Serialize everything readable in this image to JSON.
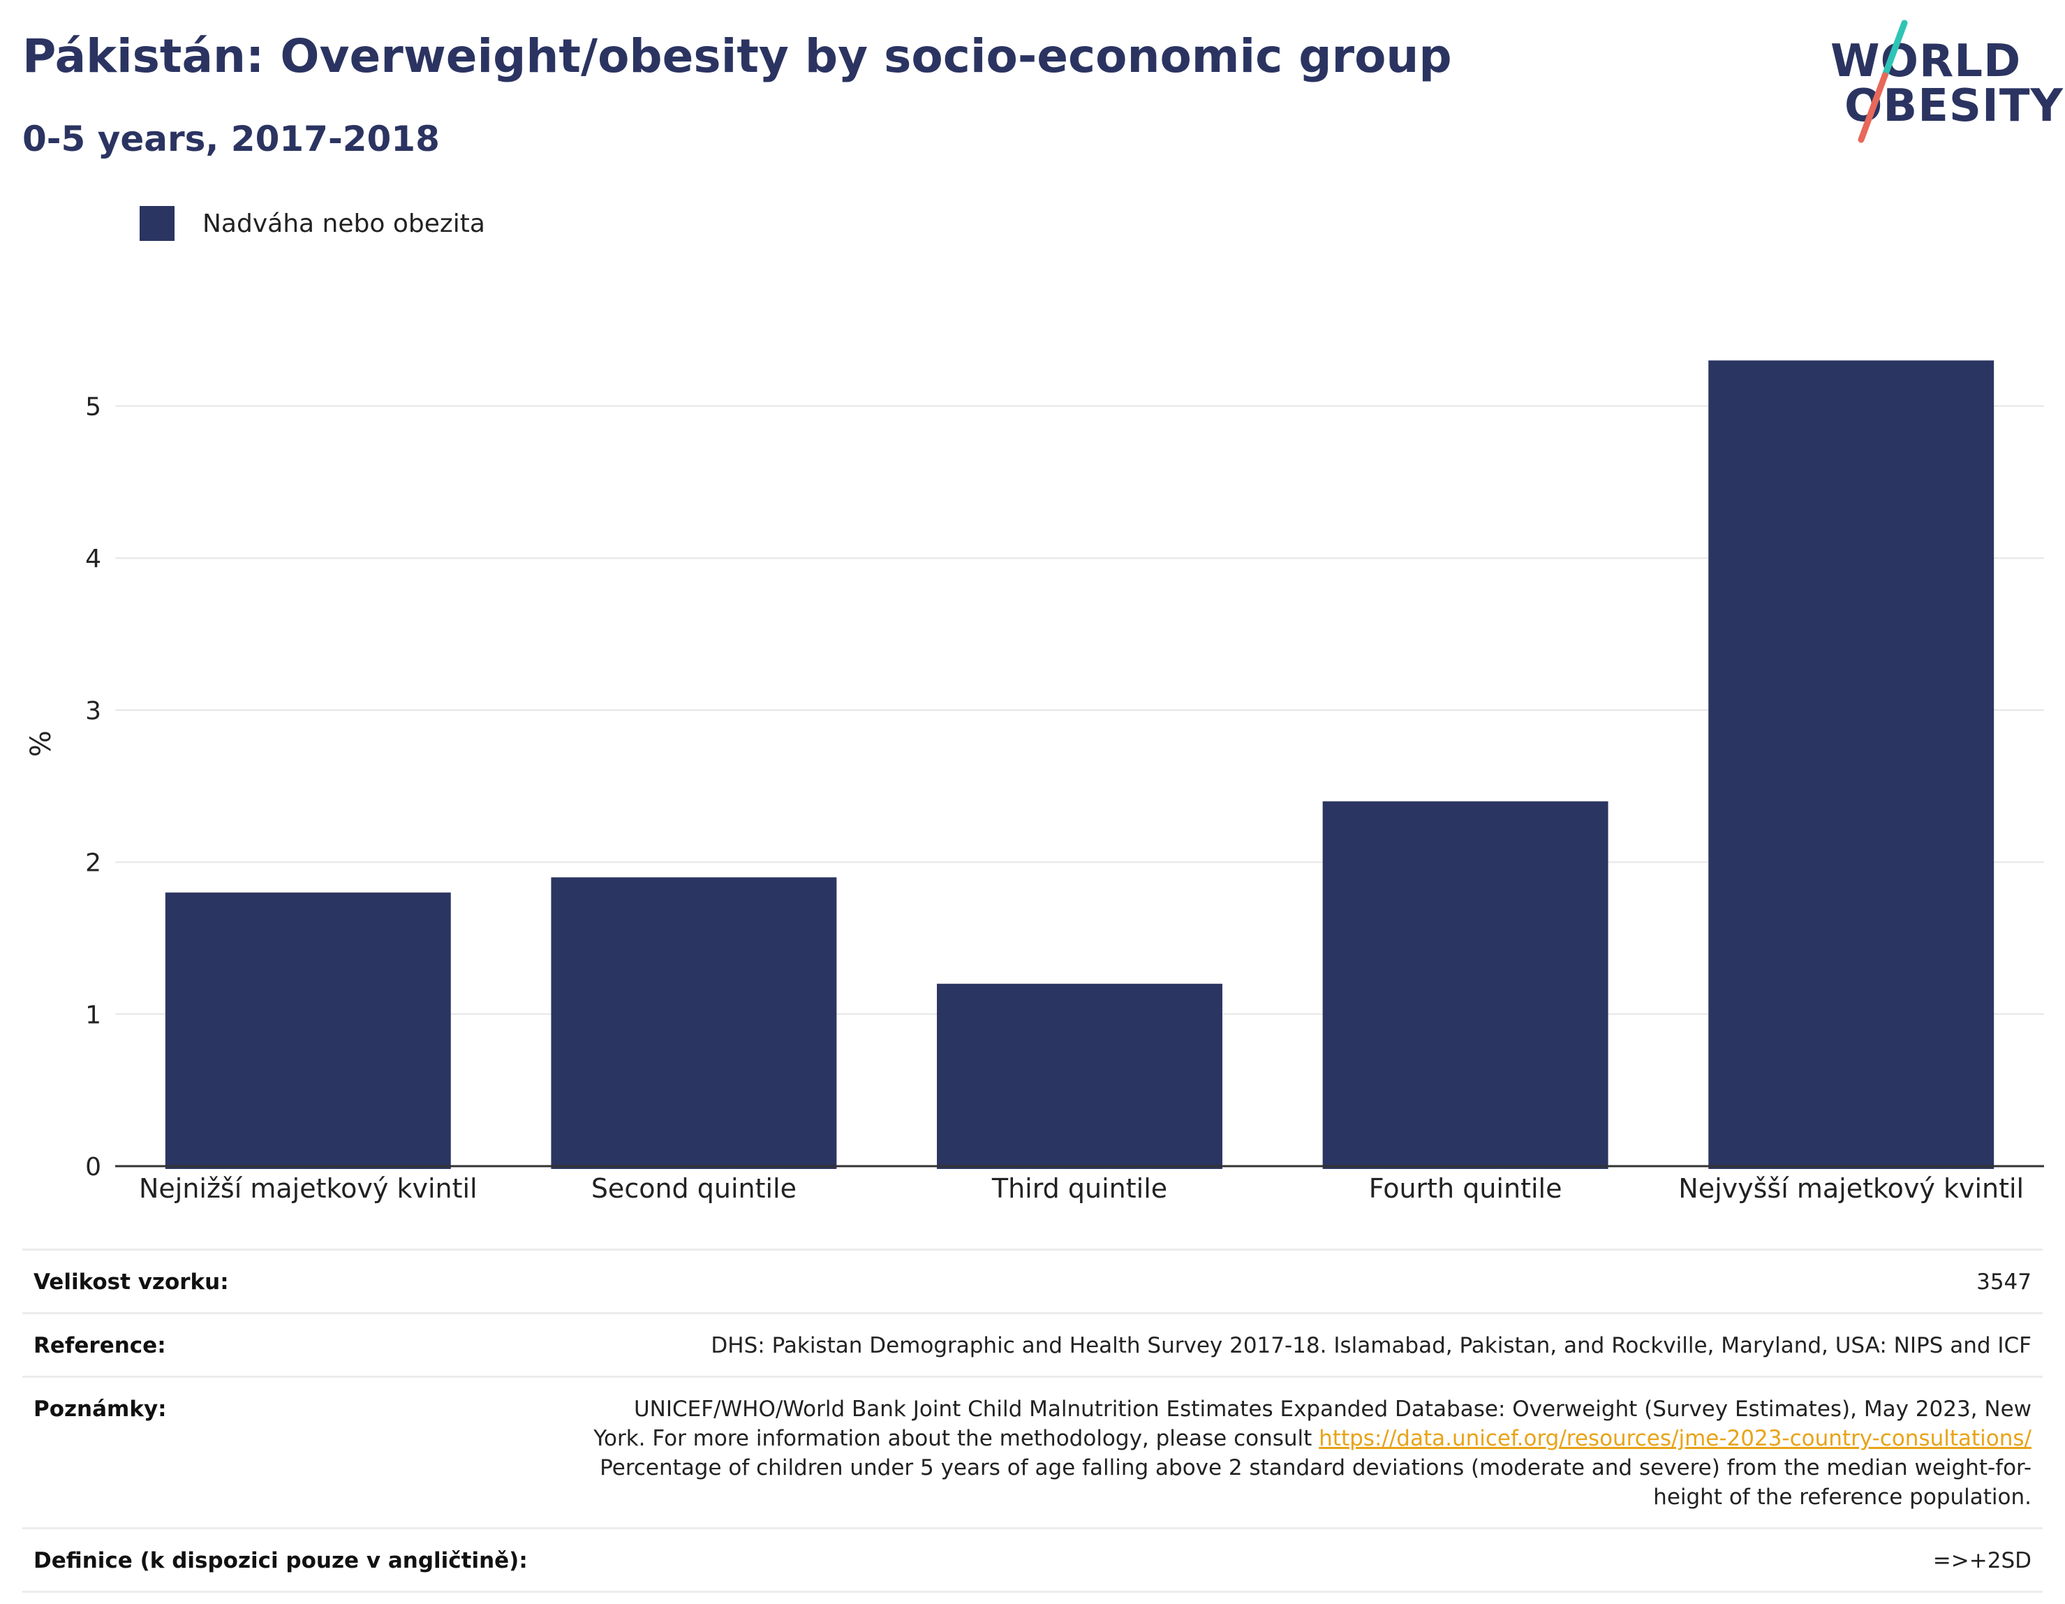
{
  "header": {
    "title": "Pákistán: Overweight/obesity by socio-economic group",
    "subtitle": "0-5 years, 2017-2018"
  },
  "logo": {
    "line1": "WORLD",
    "line2": "OBESITY",
    "accent_colors": [
      "#2ec4b6",
      "#e8685a"
    ]
  },
  "legend": {
    "label": "Nadváha nebo obezita",
    "color": "#2b3562"
  },
  "chart_data": {
    "type": "bar",
    "categories": [
      "Nejnižší majetkový kvintil",
      "Second quintile",
      "Third quintile",
      "Fourth quintile",
      "Nejvyšší majetkový kvintil"
    ],
    "series": [
      {
        "name": "Nadváha nebo obezita",
        "values": [
          1.8,
          1.9,
          1.2,
          2.4,
          5.3
        ]
      }
    ],
    "ylabel": "%",
    "ylim": [
      0,
      5.65
    ],
    "yticks": [
      0,
      1,
      2,
      3,
      4,
      5
    ],
    "grid": true,
    "legend_position": "top-left",
    "bar_color": "#2b3562"
  },
  "info": {
    "sample_label": "Velikost vzorku:",
    "sample_value": "3547",
    "reference_label": "Reference:",
    "reference_value": "DHS: Pakistan Demographic and Health Survey 2017-18. Islamabad, Pakistan, and Rockville, Maryland, USA: NIPS and ICF",
    "notes_label": "Poznámky:",
    "notes_text1": "UNICEF/WHO/World Bank Joint Child Malnutrition Estimates Expanded Database: Overweight (Survey Estimates), May 2023, New York. For more information about the methodology, please consult ",
    "notes_link": "https://data.unicef.org/resources/jme-2023-country-consultations/",
    "notes_text2": "Percentage of children under 5 years of age falling above 2 standard deviations (moderate and severe) from the median weight-for-height of the reference population.",
    "definition_label": "Definice (k dispozici pouze v angličtině):",
    "definition_value": "=>+2SD"
  }
}
